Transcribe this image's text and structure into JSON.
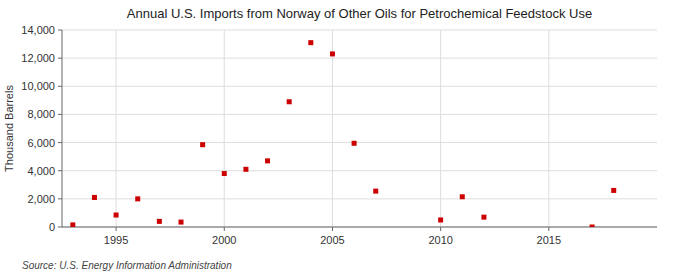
{
  "chart_data": {
    "type": "scatter",
    "title": "Annual U.S. Imports from Norway of Other Oils for Petrochemical Feedstock Use",
    "ylabel": "Thousand Barrels",
    "annotations": [
      "Source: U.S. Energy Information Administration"
    ],
    "x": [
      1993,
      1994,
      1995,
      1996,
      1997,
      1998,
      1999,
      2000,
      2001,
      2002,
      2003,
      2004,
      2005,
      2006,
      2007,
      2010,
      2011,
      2012,
      2017,
      2018
    ],
    "values": [
      150,
      2100,
      850,
      2000,
      400,
      350,
      5850,
      3800,
      4100,
      4700,
      8900,
      13100,
      12300,
      5950,
      2550,
      500,
      2150,
      700,
      0,
      2600
    ],
    "color": "#cc0000",
    "marker": "square",
    "xlim": [
      1992.5,
      2020
    ],
    "xticks": [
      1995,
      2000,
      2005,
      2010,
      2015
    ],
    "ylim": [
      0,
      14000
    ],
    "yticks": [
      0,
      {
        "value": 2000,
        "label": "2,000"
      },
      {
        "value": 4000,
        "label": "4,000"
      },
      {
        "value": 6000,
        "label": "6,000"
      },
      {
        "value": 8000,
        "label": "8,000"
      },
      {
        "value": 10000,
        "label": "10,000"
      },
      {
        "value": 12000,
        "label": "12,000"
      },
      {
        "value": 14000,
        "label": "14,000"
      }
    ],
    "grid": true
  }
}
